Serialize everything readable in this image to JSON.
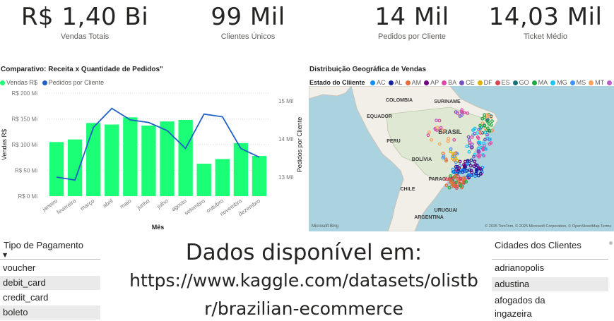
{
  "kpis": [
    {
      "value": "R$ 1,40 Bi",
      "label": "Vendas Totais"
    },
    {
      "value": "99 Mil",
      "label": "Clientes Únicos"
    },
    {
      "value": "14 Mil",
      "label": "Pedidos por Cliente"
    },
    {
      "value": "14,03 Mil",
      "label": "Ticket Médio"
    }
  ],
  "combo": {
    "title": "Comparativo: Receita x Quantidade de Pedidos\"",
    "legend": [
      {
        "name": "Vendas R$",
        "color": "#1aff75"
      },
      {
        "name": "Pedidos por Cliente",
        "color": "#1f5fc6"
      }
    ]
  },
  "chart_data": {
    "type": "bar",
    "title": "Comparativo: Receita x Quantidade de Pedidos\"",
    "categories": [
      "janeiro",
      "fevereiro",
      "março",
      "abril",
      "maio",
      "junho",
      "julho",
      "agosto",
      "setembro",
      "outubro",
      "novembro",
      "dezembro"
    ],
    "series": [
      {
        "name": "Vendas R$",
        "type": "bar",
        "axis": "left",
        "color": "#1aff75",
        "values": [
          105,
          110,
          142,
          139,
          153,
          137,
          145,
          148,
          63,
          72,
          103,
          78
        ]
      },
      {
        "name": "Pedidos por Cliente",
        "type": "line",
        "axis": "right",
        "color": "#1f5fc6",
        "values": [
          13.0,
          12.92,
          14.3,
          14.8,
          14.5,
          14.43,
          14.22,
          13.75,
          14.65,
          14.58,
          13.75,
          13.52
        ]
      }
    ],
    "xlabel": "Mês",
    "ylabel": "Vendas R$",
    "y2label": "Pedidos por Cliente",
    "ylim": [
      0,
      200
    ],
    "y2lim": [
      12.5,
      15.2
    ],
    "yticks": [
      "R$ 0 Mi",
      "R$ 50 Mi",
      "R$ 100 Mi",
      "R$ 150 Mi",
      "R$ 200 Mi"
    ],
    "y2ticks": [
      "13 Mil",
      "14 Mil",
      "15 Mil"
    ],
    "legend_position": "top-left",
    "grid": true
  },
  "map": {
    "title": "Distribuição Geográfica de Vendas",
    "legend_label": "Estado do Cliiente",
    "legend": [
      {
        "name": "AC",
        "color": "#118dff"
      },
      {
        "name": "AL",
        "color": "#12239e"
      },
      {
        "name": "AM",
        "color": "#e66c37"
      },
      {
        "name": "AP",
        "color": "#6b007b"
      },
      {
        "name": "BA",
        "color": "#e044a7"
      },
      {
        "name": "CE",
        "color": "#744ec2"
      },
      {
        "name": "DF",
        "color": "#d9b300"
      },
      {
        "name": "ES",
        "color": "#d64550"
      },
      {
        "name": "GO",
        "color": "#197278"
      },
      {
        "name": "MA",
        "color": "#1aab40"
      },
      {
        "name": "MG",
        "color": "#15c6f4"
      },
      {
        "name": "MS",
        "color": "#4092ff"
      },
      {
        "name": "MT",
        "color": "#ffa058"
      },
      {
        "name": "PA",
        "color": "#be5dc9"
      }
    ],
    "labels": {
      "colombia": "COLOMBIA",
      "suriname": "SURINAME",
      "equador": "EQUADOR",
      "brasil": "BRASIL",
      "peru": "PERU",
      "bolivia": "BOLÍVIA",
      "paraguai": "PARAGUAI",
      "chile": "CHILE",
      "uruguai": "URUGUAI",
      "argentina": "ARGENTINA"
    },
    "brand": "Microsoft Bing",
    "copyright": "© 2025 TomTom, © 2025 Microsoft Corporation, © OpenStreetMap  Terms"
  },
  "payment": {
    "header": "Tipo de Pagamento",
    "items": [
      "voucher",
      "debit_card",
      "credit_card",
      "boleto"
    ]
  },
  "center": {
    "title": "Dados disponível em:",
    "line1": "https://www.kaggle.com/datasets/olistb",
    "line2": "r/brazilian-ecommerce"
  },
  "cities": {
    "header": "Cidades dos Clientes",
    "items": [
      "adrianopolis",
      "adustina",
      "afogados da",
      "ingazeira"
    ]
  }
}
